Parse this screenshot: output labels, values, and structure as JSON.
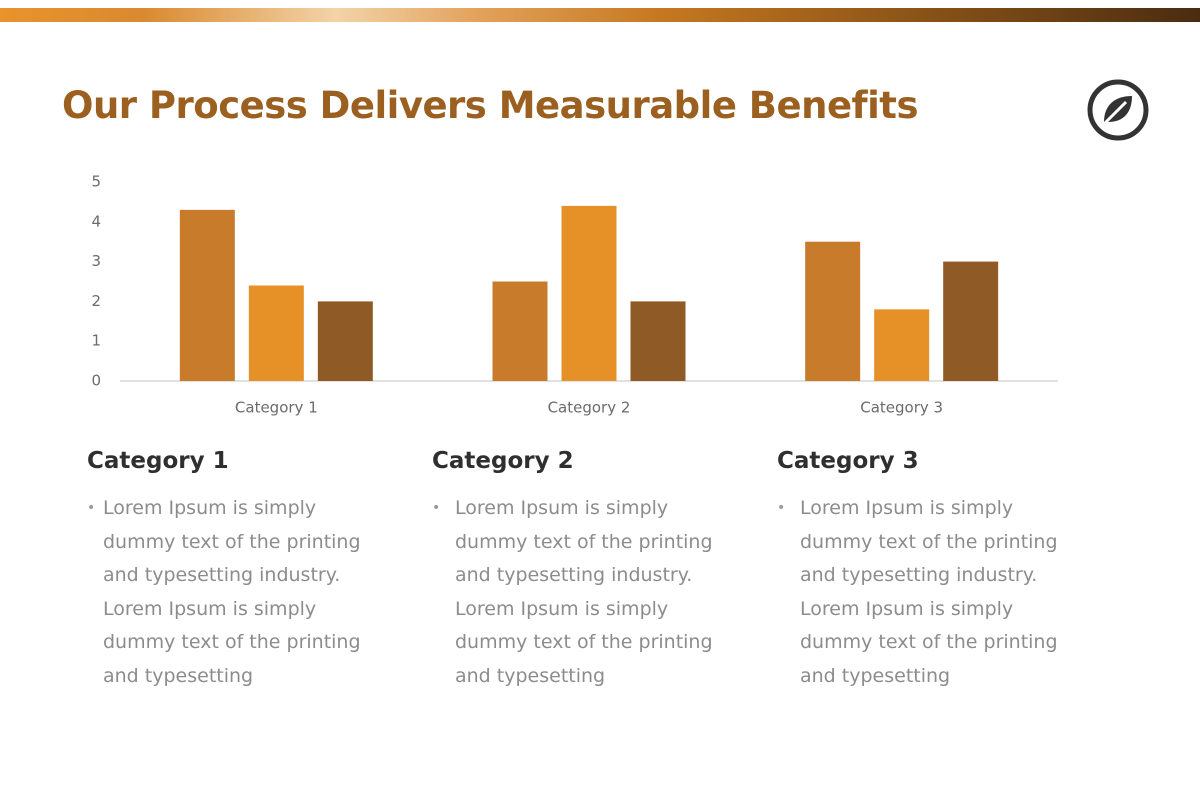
{
  "title": "Our Process Delivers Measurable Benefits",
  "chart_data": {
    "type": "bar",
    "categories": [
      "Category 1",
      "Category 2",
      "Category 3"
    ],
    "series": [
      {
        "color": "#c87b2a",
        "values": [
          4.3,
          2.5,
          3.5
        ]
      },
      {
        "color": "#e59128",
        "values": [
          2.4,
          4.4,
          1.8
        ]
      },
      {
        "color": "#8f5a26",
        "values": [
          2.0,
          2.0,
          3.0
        ]
      }
    ],
    "ylim": [
      0,
      5
    ],
    "yticks": [
      0,
      1,
      2,
      3,
      4,
      5
    ],
    "grid": false
  },
  "columns": [
    {
      "heading": "Category 1",
      "text": "Lorem Ipsum is simply dummy text of the printing and typesetting industry. Lorem Ipsum is simply dummy text of the printing and typesetting"
    },
    {
      "heading": "Category 2",
      "text": "Lorem Ipsum is simply dummy text of the printing and typesetting industry. Lorem Ipsum is simply dummy text of the printing and typesetting"
    },
    {
      "heading": "Category 3",
      "text": "Lorem Ipsum is simply dummy text of the printing and typesetting industry. Lorem Ipsum is simply dummy text of the printing and typesetting"
    }
  ]
}
